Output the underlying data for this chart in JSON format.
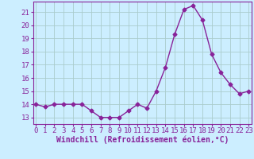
{
  "x": [
    0,
    1,
    2,
    3,
    4,
    5,
    6,
    7,
    8,
    9,
    10,
    11,
    12,
    13,
    14,
    15,
    16,
    17,
    18,
    19,
    20,
    21,
    22,
    23
  ],
  "y": [
    14,
    13.8,
    14,
    14,
    14,
    14,
    13.5,
    13,
    13,
    13,
    13.5,
    14,
    13.7,
    15,
    16.8,
    19.3,
    21.2,
    21.5,
    20.4,
    17.8,
    16.4,
    15.5,
    14.8,
    15
  ],
  "line_color": "#882299",
  "marker": "D",
  "marker_size": 2.5,
  "bg_color": "#cceeff",
  "grid_color": "#aacccc",
  "xlabel": "Windchill (Refroidissement éolien,°C)",
  "xlabel_fontsize": 7,
  "yticks": [
    13,
    14,
    15,
    16,
    17,
    18,
    19,
    20,
    21
  ],
  "xticks": [
    0,
    1,
    2,
    3,
    4,
    5,
    6,
    7,
    8,
    9,
    10,
    11,
    12,
    13,
    14,
    15,
    16,
    17,
    18,
    19,
    20,
    21,
    22,
    23
  ],
  "ylim": [
    12.5,
    21.8
  ],
  "xlim": [
    -0.3,
    23.3
  ],
  "tick_fontsize": 6.5,
  "line_width": 1.0
}
